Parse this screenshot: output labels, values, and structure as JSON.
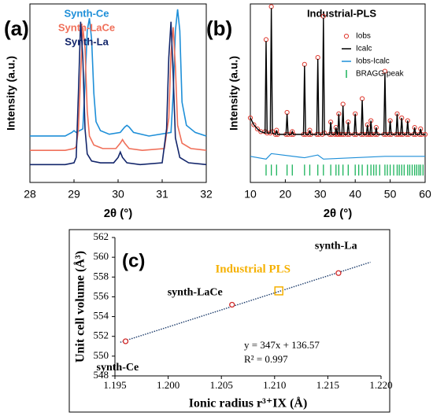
{
  "chart_data": [
    {
      "type": "line",
      "panel_label": "(a)",
      "xlabel": "2θ (°)",
      "ylabel": "Intensity (a.u.)",
      "xlim": [
        28,
        32
      ],
      "xticks": [
        28,
        29,
        30,
        31,
        32
      ],
      "ylim": [
        0,
        100
      ],
      "series": [
        {
          "name": "Synth-Ce",
          "color": "#1e8fd8",
          "x": [
            28,
            28.8,
            28.95,
            29.0,
            29.05,
            29.2,
            29.25,
            29.3,
            29.35,
            29.4,
            29.45,
            29.5,
            29.6,
            29.8,
            30.05,
            30.15,
            30.2,
            30.25,
            30.35,
            30.7,
            31.2,
            31.25,
            31.3,
            31.35,
            31.4,
            31.45,
            31.55,
            31.75,
            32
          ],
          "values": [
            26,
            26,
            28,
            29,
            28,
            30,
            55,
            85,
            92,
            80,
            50,
            34,
            29,
            27,
            28,
            31,
            32,
            31,
            28,
            26,
            28,
            50,
            85,
            97,
            85,
            45,
            32,
            28,
            26
          ]
        },
        {
          "name": "Synth-LaCe",
          "color": "#f0705a",
          "x": [
            28,
            28.8,
            29.0,
            29.05,
            29.1,
            29.15,
            29.2,
            29.25,
            29.3,
            29.35,
            29.45,
            29.65,
            29.95,
            30.05,
            30.1,
            30.15,
            30.25,
            30.55,
            31.05,
            31.15,
            31.2,
            31.25,
            31.3,
            31.35,
            31.45,
            31.65,
            32
          ],
          "values": [
            18,
            18,
            19,
            20,
            30,
            60,
            87,
            75,
            40,
            26,
            21,
            19,
            19,
            22,
            24,
            22,
            19,
            18,
            19,
            36,
            72,
            87,
            65,
            32,
            22,
            19,
            18
          ]
        },
        {
          "name": "Synth-La",
          "color": "#13266b",
          "x": [
            28,
            28.8,
            29.0,
            29.05,
            29.1,
            29.15,
            29.2,
            29.25,
            29.3,
            29.4,
            29.6,
            29.9,
            30.0,
            30.05,
            30.1,
            30.2,
            30.5,
            31.0,
            31.1,
            31.15,
            31.2,
            31.25,
            31.3,
            31.4,
            31.6,
            32
          ],
          "values": [
            10,
            10,
            11,
            14,
            50,
            90,
            70,
            30,
            16,
            12,
            11,
            11,
            14,
            17,
            14,
            11,
            10,
            11,
            30,
            70,
            90,
            60,
            25,
            14,
            11,
            10
          ]
        }
      ]
    },
    {
      "type": "line",
      "panel_label": "(b)",
      "title": "Industrial-PLS",
      "xlabel": "2θ (°)",
      "ylabel": "Intensity (a.u.)",
      "xlim": [
        10,
        60
      ],
      "xticks": [
        10,
        20,
        30,
        40,
        50,
        60
      ],
      "ylim": [
        -30,
        100
      ],
      "series": [
        {
          "name": "Iobs",
          "color": "#e03a30",
          "style": "markers",
          "x": [
            10,
            11,
            12,
            13,
            14.2,
            14.5,
            14.8,
            15.7,
            16.0,
            16.3,
            17.2,
            17.5,
            17.8,
            20.2,
            20.5,
            20.8,
            21.7,
            22,
            22.3,
            25.2,
            25.5,
            25.8,
            26.7,
            27,
            27.3,
            29,
            29.3,
            29.6,
            30.6,
            30.9,
            31.2,
            32.7,
            33,
            33.3,
            34.2,
            34.5,
            34.8,
            35.0,
            35.3,
            35.6,
            36.2,
            36.5,
            36.8,
            37.7,
            38,
            38.3,
            39.7,
            40,
            40.3,
            41.7,
            42,
            42.3,
            43.2,
            43.5,
            43.8,
            44.2,
            44.5,
            44.8,
            45.7,
            46,
            46.3,
            48.2,
            48.5,
            48.8,
            49.7,
            50,
            50.3,
            51.7,
            52,
            52.3,
            53,
            53.3,
            53.6,
            54.7,
            55,
            55.3,
            56.7,
            57,
            57.3,
            58.4,
            58.7,
            59,
            60
          ],
          "values": [
            17,
            12,
            9,
            7,
            7,
            74,
            6,
            6,
            98,
            7,
            5,
            8,
            5,
            5,
            21,
            5,
            5,
            7,
            5,
            5,
            56,
            5,
            5,
            8,
            5,
            5,
            61,
            5,
            5,
            91,
            6,
            5,
            14,
            5,
            5,
            10,
            5,
            5,
            20,
            5,
            5,
            27,
            5,
            5,
            14,
            5,
            5,
            20,
            5,
            5,
            31,
            5,
            5,
            12,
            5,
            5,
            15,
            5,
            5,
            10,
            5,
            5,
            51,
            5,
            5,
            15,
            5,
            5,
            20,
            5,
            5,
            17,
            5,
            5,
            15,
            5,
            5,
            10,
            5,
            5,
            9,
            5,
            5
          ]
        },
        {
          "name": "Icalc",
          "color": "#000000",
          "style": "line",
          "x": [
            10,
            11,
            12,
            13,
            14.2,
            14.5,
            14.8,
            15.7,
            16.0,
            16.3,
            17.2,
            17.5,
            17.8,
            20.2,
            20.5,
            20.8,
            21.7,
            22,
            22.3,
            25.2,
            25.5,
            25.8,
            26.7,
            27,
            27.3,
            29,
            29.3,
            29.6,
            30.6,
            30.9,
            31.2,
            32.7,
            33,
            33.3,
            34.2,
            34.5,
            34.8,
            35.0,
            35.3,
            35.6,
            36.2,
            36.5,
            36.8,
            37.7,
            38,
            38.3,
            39.7,
            40,
            40.3,
            41.7,
            42,
            42.3,
            43.2,
            43.5,
            43.8,
            44.2,
            44.5,
            44.8,
            45.7,
            46,
            46.3,
            48.2,
            48.5,
            48.8,
            49.7,
            50,
            50.3,
            51.7,
            52,
            52.3,
            53,
            53.3,
            53.6,
            54.7,
            55,
            55.3,
            56.7,
            57,
            57.3,
            58.4,
            58.7,
            59,
            60
          ],
          "values": [
            17,
            12,
            9,
            7,
            6,
            73,
            6,
            6,
            97,
            6,
            5,
            8,
            5,
            5,
            20,
            5,
            5,
            7,
            5,
            5,
            55,
            5,
            5,
            8,
            5,
            5,
            60,
            5,
            5,
            90,
            5,
            5,
            14,
            5,
            5,
            10,
            5,
            5,
            20,
            5,
            5,
            26,
            5,
            5,
            14,
            5,
            5,
            20,
            5,
            5,
            30,
            5,
            5,
            12,
            5,
            5,
            15,
            5,
            5,
            10,
            5,
            5,
            50,
            5,
            5,
            15,
            5,
            5,
            20,
            5,
            5,
            17,
            5,
            5,
            15,
            5,
            5,
            10,
            5,
            5,
            9,
            5,
            5
          ]
        },
        {
          "name": "Iobs-Icalc",
          "color": "#1e8fd8",
          "style": "line",
          "x": [
            10,
            14.5,
            16,
            25.5,
            29.3,
            30.9,
            48.5,
            60
          ],
          "values": [
            -11,
            -13,
            -9,
            -12,
            -10,
            -13,
            -11,
            -11
          ]
        },
        {
          "name": "BRAGG peak",
          "color": "#1ab35a",
          "style": "ticks",
          "x": [
            14.5,
            16,
            17.5,
            20.5,
            22,
            25.5,
            27,
            29.3,
            30.9,
            33,
            34.5,
            35.3,
            36.5,
            38,
            40,
            41,
            42,
            43.5,
            44.5,
            45.3,
            46,
            47,
            48.5,
            49.2,
            50,
            51,
            52,
            52.6,
            53.3,
            54,
            55,
            55.6,
            56.3,
            57,
            57.6,
            58.2,
            58.7,
            59.4
          ]
        }
      ]
    },
    {
      "type": "scatter",
      "panel_label": "(c)",
      "xlabel": "Ionic radius r³⁺IX (Å)",
      "ylabel": "Unit cell volume (Å³)",
      "xlim": [
        1.195,
        1.22
      ],
      "xticks": [
        1.195,
        {
          "value": 1.2,
          "label": "1.200"
        },
        1.205,
        {
          "value": 1.21,
          "label": "1.210"
        },
        1.215,
        {
          "value": 1.22,
          "label": "1.220"
        }
      ],
      "ylim": [
        548,
        562
      ],
      "yticks": [
        548,
        550,
        552,
        554,
        556,
        558,
        560,
        562
      ],
      "points": {
        "color": "#d02a2a",
        "x": [
          1.196,
          1.206,
          1.216
        ],
        "values": [
          551.5,
          555.2,
          558.4
        ],
        "labels": [
          "synth-Ce",
          "synth-LaCe",
          "synth-La"
        ]
      },
      "highlight": {
        "label": "Industrial PLS",
        "color": "#f5b000",
        "x": 1.2104,
        "value": 556.6
      },
      "fit": {
        "color": "#1a3a6a",
        "x": [
          1.1955,
          1.219
        ],
        "values": [
          551.4,
          559.5
        ]
      },
      "equation": "y = 347x + 136.57",
      "r2": "R² = 0.997"
    }
  ]
}
